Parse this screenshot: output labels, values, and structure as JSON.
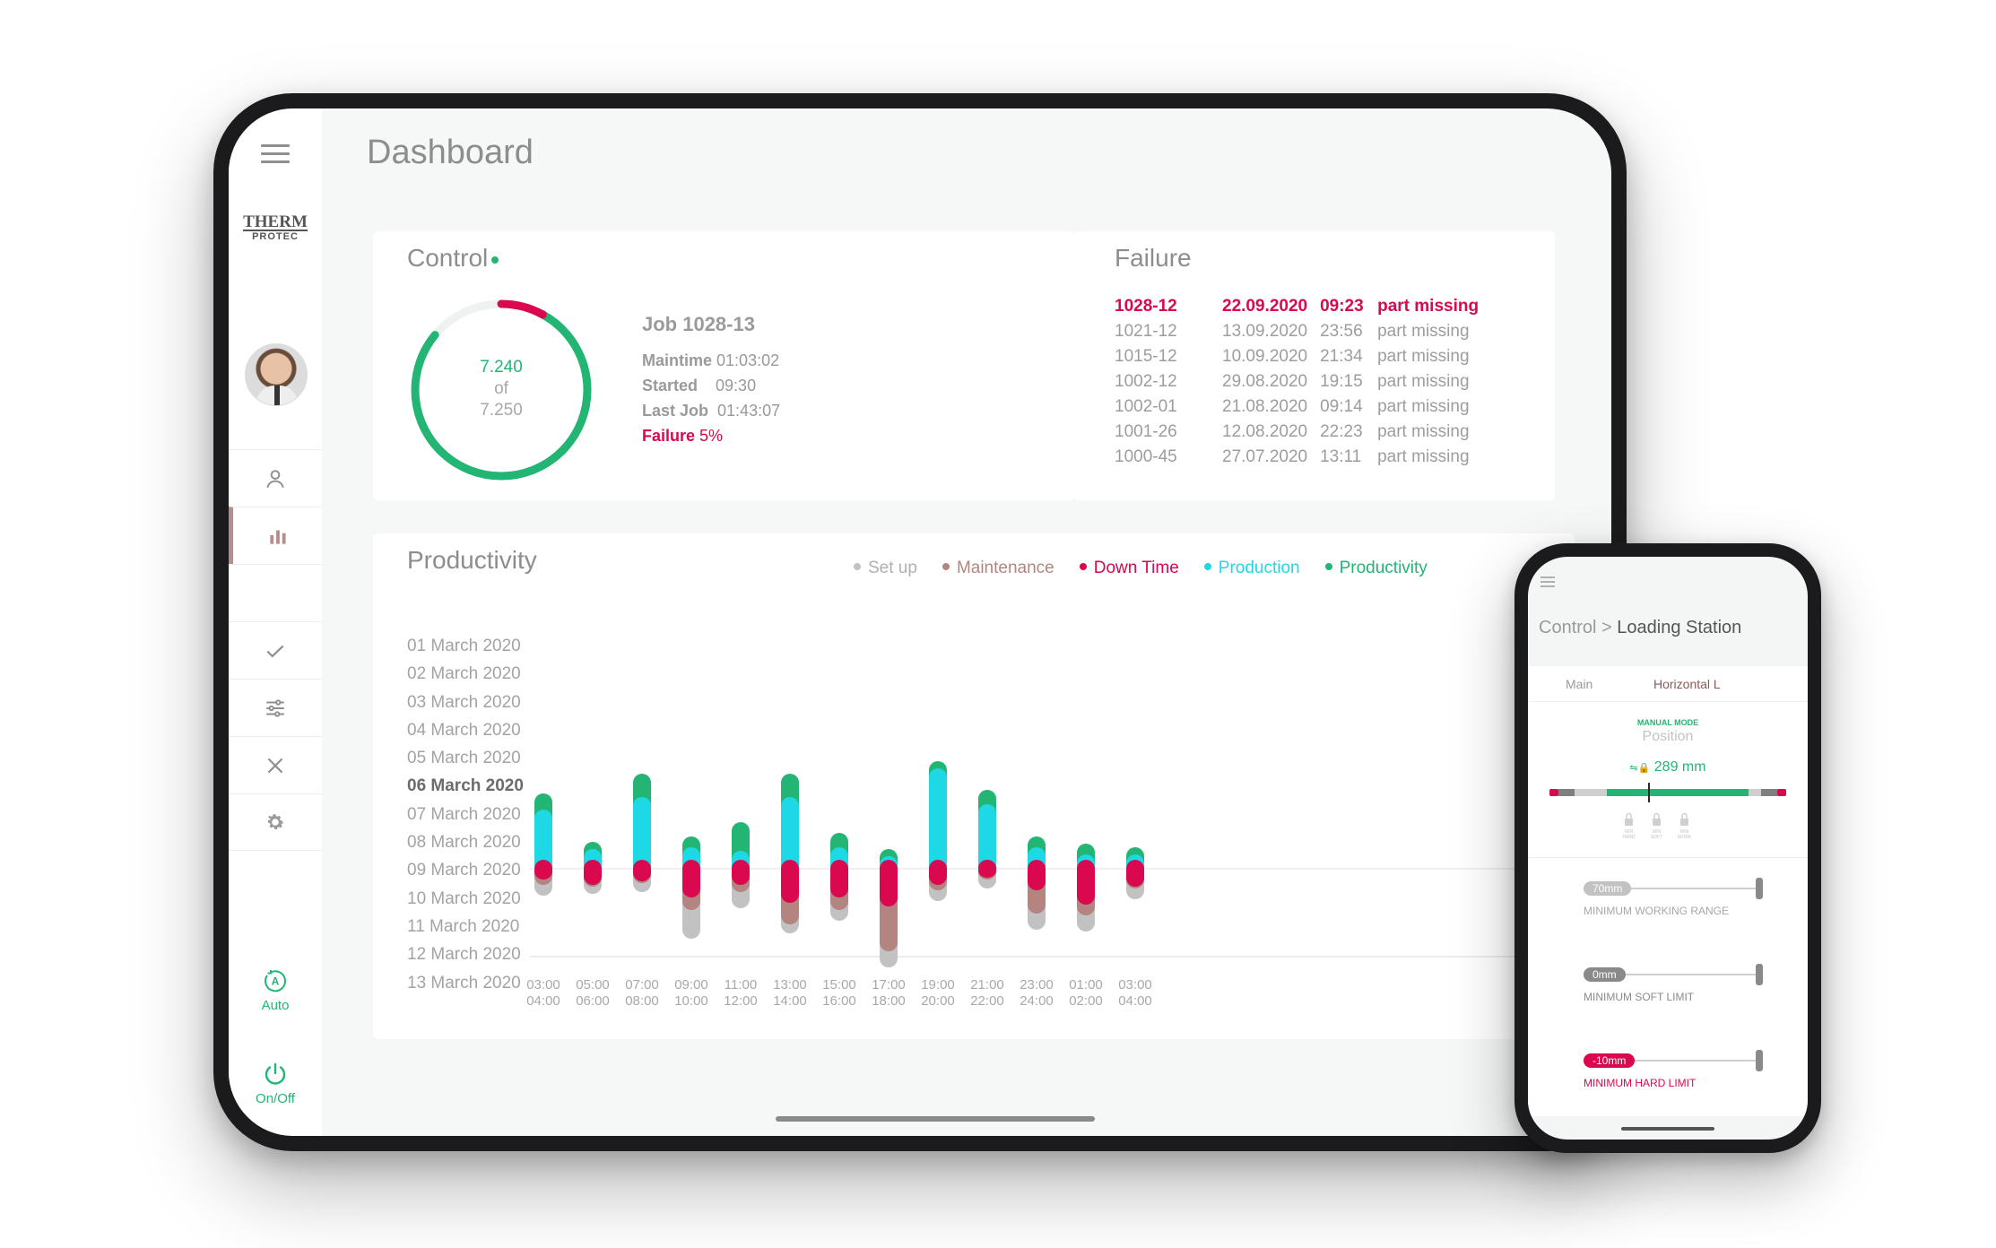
{
  "sidebar": {
    "logo_line1": "THERM",
    "logo_line2": "PROTEC",
    "mode_auto_label": "Auto",
    "mode_onoff_label": "On/Off"
  },
  "header": {
    "title": "Dashboard"
  },
  "control": {
    "title": "Control",
    "gauge_value": "7.240",
    "gauge_of": "of",
    "gauge_total": "7.250",
    "gauge_progress": 0.9986,
    "failure_fraction": 0.05,
    "job_title": "Job 1028-13",
    "maintime_label": "Maintime",
    "maintime_value": "01:03:02",
    "started_label": "Started",
    "started_value": "09:30",
    "lastjob_label": "Last Job",
    "lastjob_value": "01:43:07",
    "failure_label": "Failure",
    "failure_value": "5%"
  },
  "failure": {
    "title": "Failure",
    "rows": [
      {
        "job": "1028-12",
        "date": "22.09.2020",
        "time": "09:23",
        "reason": "part missing"
      },
      {
        "job": "1021-12",
        "date": "13.09.2020",
        "time": "23:56",
        "reason": "part missing"
      },
      {
        "job": "1015-12",
        "date": "10.09.2020",
        "time": "21:34",
        "reason": "part missing"
      },
      {
        "job": "1002-12",
        "date": "29.08.2020",
        "time": "19:15",
        "reason": "part missing"
      },
      {
        "job": "1002-01",
        "date": "21.08.2020",
        "time": "09:14",
        "reason": "part missing"
      },
      {
        "job": "1001-26",
        "date": "12.08.2020",
        "time": "22:23",
        "reason": "part missing"
      },
      {
        "job": "1000-45",
        "date": "27.07.2020",
        "time": "13:11",
        "reason": "part missing"
      }
    ]
  },
  "productivity": {
    "title": "Productivity",
    "legend": [
      {
        "label": "Set up",
        "color": "#c2c2c2"
      },
      {
        "label": "Maintenance",
        "color": "#b48580"
      },
      {
        "label": "Down Time",
        "color": "#d9084f"
      },
      {
        "label": "Production",
        "color": "#1fd8e6"
      },
      {
        "label": "Productivity",
        "color": "#22b573"
      }
    ],
    "dates": [
      "01 March 2020",
      "02 March 2020",
      "03 March 2020",
      "04 March 2020",
      "05 March 2020",
      "06 March 2020",
      "07 March 2020",
      "08 March 2020",
      "09 March 2020",
      "10 March 2020",
      "11 March 2020",
      "12 March 2020",
      "13 March 2020"
    ],
    "selected_date": "06 March 2020"
  },
  "chart_data": {
    "type": "bar",
    "categories": [
      [
        "03:00",
        "04:00"
      ],
      [
        "05:00",
        "06:00"
      ],
      [
        "07:00",
        "08:00"
      ],
      [
        "09:00",
        "10:00"
      ],
      [
        "11:00",
        "12:00"
      ],
      [
        "13:00",
        "14:00"
      ],
      [
        "15:00",
        "16:00"
      ],
      [
        "17:00",
        "18:00"
      ],
      [
        "19:00",
        "20:00"
      ],
      [
        "21:00",
        "22:00"
      ],
      [
        "23:00",
        "24:00"
      ],
      [
        "01:00",
        "02:00"
      ],
      [
        "03:00",
        "04:00"
      ]
    ],
    "series_above_baseline": [
      {
        "name": "Productivity",
        "values": [
          0.9,
          0.4,
          1.3,
          0.6,
          1.6,
          1.3,
          0.8,
          0.4,
          0.4,
          0.8,
          0.6,
          0.6,
          0.4
        ]
      },
      {
        "name": "Production",
        "values": [
          3.0,
          0.8,
          3.7,
          0.9,
          0.7,
          3.7,
          0.9,
          0.4,
          5.3,
          3.3,
          0.9,
          0.5,
          0.5
        ]
      }
    ],
    "series_below_baseline": [
      {
        "name": "Down Time",
        "values": [
          0.3,
          0.6,
          0.4,
          1.3,
          0.6,
          1.6,
          1.3,
          1.8,
          0.6,
          0.2,
          0.9,
          1.7,
          0.7
        ]
      },
      {
        "name": "Maintenance",
        "values": [
          0.3,
          0.1,
          0.1,
          0.7,
          0.4,
          1.2,
          0.7,
          2.5,
          0.3,
          0.1,
          1.3,
          0.6,
          0.1
        ]
      },
      {
        "name": "Set up",
        "values": [
          0.6,
          0.4,
          0.5,
          1.6,
          0.9,
          0.5,
          0.6,
          0.9,
          0.6,
          0.5,
          0.9,
          0.9,
          0.6
        ]
      }
    ]
  },
  "phone": {
    "breadcrumb_parent": "Control",
    "breadcrumb_sep": ">",
    "breadcrumb_current": "Loading Station",
    "tab_main": "Main",
    "tab_horizontal": "Horizontal L",
    "manual_mode": "MANUAL MODE",
    "position_label": "Position",
    "position_value": "289 mm",
    "lock_labels": [
      "MIN HARD",
      "MIN SOFT",
      "MIN WORK"
    ],
    "limits": [
      {
        "value": "70mm",
        "caption": "MINIMUM WORKING RANGE",
        "color": "#c2c2c2",
        "caption_color": "#a8a8a8"
      },
      {
        "value": "0mm",
        "caption": "MINIMUM SOFT LIMIT",
        "color": "#8a8a8a",
        "caption_color": "#8a8a8a"
      },
      {
        "value": "-10mm",
        "caption": "MINIMUM HARD LIMIT",
        "color": "#d9084f",
        "caption_color": "#d9084f"
      }
    ]
  }
}
